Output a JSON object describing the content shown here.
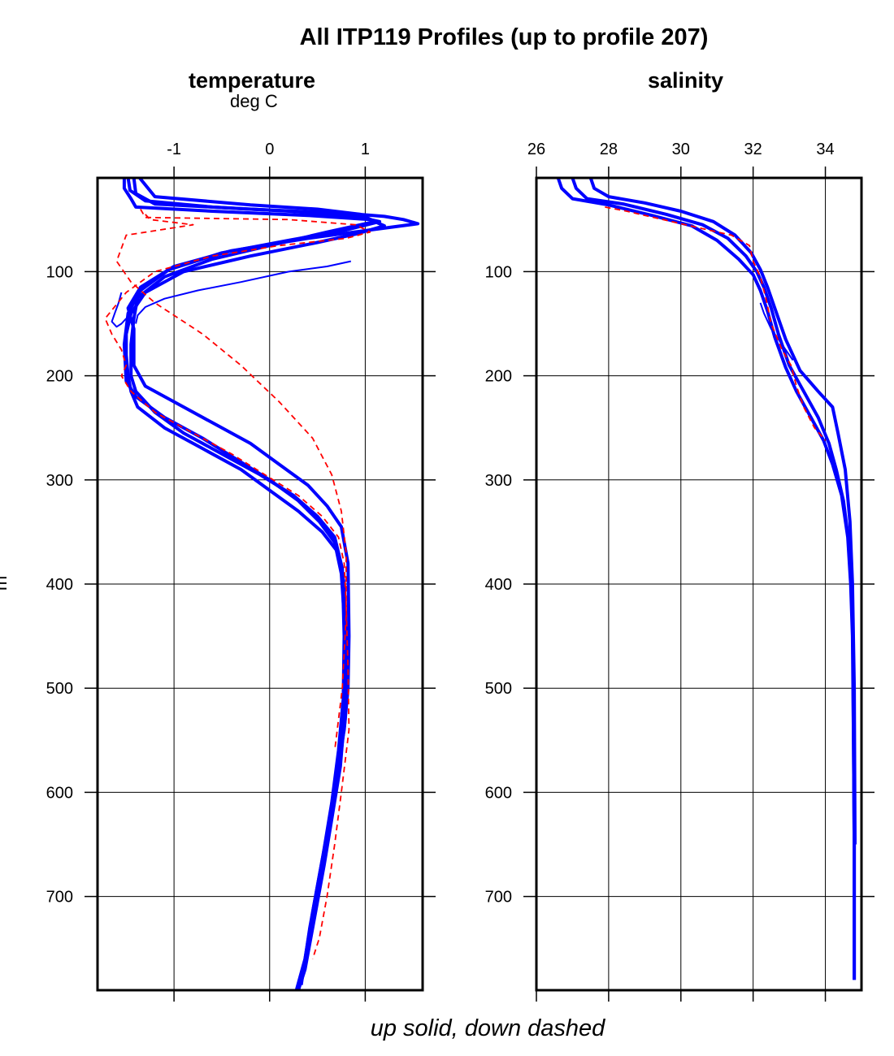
{
  "title": "All ITP119 Profiles (up to profile 207)",
  "footer": "up solid, down dashed",
  "ylabel": "m",
  "colors": {
    "up": "#0000ff",
    "down": "#ff0000",
    "grid": "#000000"
  },
  "chart_data": [
    {
      "type": "line",
      "title": "temperature",
      "unit": "deg C",
      "xlim": [
        -1.8,
        1.6
      ],
      "ylim": [
        790,
        10
      ],
      "y_inverted": true,
      "xticks": [
        -1,
        0,
        1
      ],
      "xtick_labels": [
        "-1",
        "0",
        "1"
      ],
      "yticks": [
        100,
        200,
        300,
        400,
        500,
        600,
        700
      ],
      "ytick_labels": [
        "100",
        "200",
        "300",
        "400",
        "500",
        "600",
        "700"
      ],
      "grid": true,
      "series": [
        {
          "style": "up_solid",
          "x": [
            -1.52,
            -1.52,
            -1.45,
            -1.4,
            -0.6,
            0.4,
            1.05,
            1.2,
            0.9,
            0.5,
            -0.2,
            -0.9,
            -1.3,
            -1.45,
            -1.5,
            -1.5,
            -1.48,
            -1.45,
            -1.38,
            -1.1,
            -0.7,
            -0.3,
            0.0,
            0.3,
            0.55,
            0.72,
            0.78,
            0.8,
            0.8,
            0.79,
            0.75,
            0.68,
            0.6,
            0.5,
            0.4,
            0.3
          ],
          "y": [
            10,
            20,
            30,
            38,
            42,
            46,
            50,
            56,
            64,
            72,
            85,
            100,
            120,
            140,
            160,
            180,
            200,
            215,
            230,
            250,
            270,
            290,
            310,
            330,
            350,
            370,
            400,
            450,
            500,
            530,
            560,
            600,
            650,
            700,
            750,
            790
          ]
        },
        {
          "style": "up_solid",
          "x": [
            -1.42,
            -1.4,
            -1.2,
            -0.2,
            0.8,
            1.2,
            1.4,
            1.55,
            1.05,
            0.4,
            -0.4,
            -1.0,
            -1.35,
            -1.48,
            -1.42,
            -1.42,
            -1.3,
            -1.0,
            -0.6,
            -0.2,
            0.1,
            0.4,
            0.6,
            0.75,
            0.82,
            0.83,
            0.82,
            0.78,
            0.7,
            0.62,
            0.52,
            0.42,
            0.33
          ],
          "y": [
            10,
            25,
            35,
            40,
            44,
            47,
            50,
            54,
            60,
            68,
            80,
            95,
            115,
            135,
            155,
            190,
            210,
            225,
            245,
            265,
            285,
            305,
            325,
            345,
            380,
            450,
            500,
            540,
            580,
            630,
            680,
            730,
            785
          ]
        },
        {
          "style": "up_solid",
          "x": [
            0.85,
            0.6,
            0.2,
            -0.3,
            -0.75,
            -1.1,
            -1.3,
            -1.38,
            -1.4
          ],
          "y": [
            90,
            95,
            100,
            110,
            118,
            126,
            134,
            142,
            150
          ]
        },
        {
          "style": "up_solid",
          "x": [
            -1.55,
            -1.58,
            -1.62,
            -1.65,
            -1.6,
            -1.55,
            -1.5
          ],
          "y": [
            120,
            130,
            140,
            148,
            153,
            150,
            145
          ]
        },
        {
          "style": "up_solid",
          "x": [
            -1.36,
            -1.2,
            -0.2,
            0.5,
            0.95,
            1.1,
            0.6,
            0.0,
            -0.6,
            -1.1,
            -1.38,
            -1.42,
            -1.45,
            -1.45,
            -1.4,
            -1.2,
            -0.9,
            -0.5,
            -0.1,
            0.25,
            0.5,
            0.68,
            0.76,
            0.78,
            0.77,
            0.72,
            0.65,
            0.56,
            0.46,
            0.37,
            0.28
          ],
          "y": [
            10,
            28,
            36,
            40,
            45,
            52,
            62,
            75,
            88,
            105,
            125,
            145,
            170,
            200,
            215,
            235,
            255,
            275,
            295,
            315,
            335,
            355,
            385,
            450,
            510,
            560,
            610,
            660,
            710,
            760,
            790
          ]
        },
        {
          "style": "up_solid",
          "x": [
            -1.48,
            -1.46,
            -1.3,
            -0.6,
            0.2,
            0.85,
            1.15,
            0.8,
            0.2,
            -0.5,
            -1.05,
            -1.35,
            -1.48,
            -1.52,
            -1.5,
            -1.4,
            -1.1,
            -0.7,
            -0.35,
            0.0,
            0.3,
            0.52,
            0.68,
            0.75,
            0.78,
            0.8,
            0.78,
            0.74,
            0.66,
            0.57,
            0.47,
            0.37,
            0.3
          ],
          "y": [
            10,
            22,
            32,
            38,
            42,
            46,
            52,
            60,
            70,
            82,
            98,
            118,
            140,
            170,
            205,
            220,
            240,
            260,
            280,
            300,
            320,
            340,
            360,
            390,
            430,
            480,
            530,
            575,
            620,
            670,
            720,
            770,
            790
          ]
        },
        {
          "style": "down_dashed",
          "x": [
            -1.35,
            -1.3,
            0.2,
            0.9,
            1.05,
            0.8,
            0.1,
            -0.6,
            -1.2,
            -1.5,
            -1.72,
            -1.65,
            -1.55,
            -1.5,
            -1.55,
            -1.45,
            -1.2,
            -0.8,
            -0.4,
            -0.05,
            0.3,
            0.55,
            0.72,
            0.78,
            0.8,
            0.82,
            0.83,
            0.75,
            0.68,
            0.6,
            0.52,
            0.45
          ],
          "y": [
            40,
            48,
            50,
            55,
            62,
            68,
            75,
            85,
            100,
            120,
            145,
            160,
            175,
            190,
            200,
            215,
            235,
            255,
            275,
            295,
            315,
            335,
            355,
            380,
            420,
            480,
            540,
            600,
            650,
            700,
            740,
            760
          ]
        },
        {
          "style": "down_dashed",
          "x": [
            -1.3,
            -1.25,
            -0.8,
            -1.5,
            -1.6,
            -1.45,
            -1.2,
            -0.7,
            -0.3,
            0.1,
            0.45,
            0.65,
            0.75,
            0.8,
            0.8,
            0.76,
            0.68
          ],
          "y": [
            45,
            50,
            55,
            65,
            90,
            110,
            130,
            160,
            190,
            225,
            260,
            295,
            330,
            370,
            430,
            500,
            560
          ]
        }
      ]
    },
    {
      "type": "line",
      "title": "salinity",
      "unit": "",
      "xlim": [
        26,
        35
      ],
      "ylim": [
        790,
        10
      ],
      "y_inverted": true,
      "xticks": [
        26,
        28,
        30,
        32,
        34
      ],
      "xtick_labels": [
        "26",
        "28",
        "30",
        "32",
        "34"
      ],
      "yticks": [
        100,
        200,
        300,
        400,
        500,
        600,
        700
      ],
      "ytick_labels": [
        "100",
        "200",
        "300",
        "400",
        "500",
        "600",
        "700"
      ],
      "grid": true,
      "series": [
        {
          "style": "up_solid",
          "x": [
            27.0,
            27.1,
            27.4,
            28.4,
            29.6,
            30.6,
            31.3,
            31.8,
            32.1,
            32.3,
            32.5,
            32.7,
            33.0,
            33.4,
            33.8,
            34.1,
            34.3,
            34.5,
            34.65,
            34.72,
            34.76,
            34.78,
            34.8,
            34.8
          ],
          "y": [
            10,
            20,
            30,
            35,
            45,
            55,
            68,
            85,
            100,
            115,
            135,
            160,
            190,
            215,
            240,
            265,
            290,
            320,
            360,
            400,
            450,
            550,
            650,
            780
          ]
        },
        {
          "style": "up_solid",
          "x": [
            26.6,
            26.7,
            27.0,
            28.0,
            29.2,
            30.3,
            31.0,
            31.6,
            32.0,
            32.2,
            32.4,
            32.6,
            32.9,
            33.2,
            33.6,
            33.95,
            34.2,
            34.45,
            34.62,
            34.7,
            34.75,
            34.78,
            34.8,
            34.8
          ],
          "y": [
            10,
            20,
            30,
            36,
            46,
            56,
            70,
            88,
            103,
            118,
            138,
            163,
            192,
            215,
            240,
            262,
            285,
            315,
            355,
            400,
            450,
            550,
            650,
            780
          ]
        },
        {
          "style": "up_solid",
          "x": [
            27.5,
            27.6,
            28.0,
            29.0,
            30.0,
            30.9,
            31.5,
            31.95,
            32.2,
            32.4,
            32.6,
            32.9,
            33.3,
            33.8,
            34.2,
            34.35,
            34.55,
            34.68,
            34.75,
            34.8,
            34.82
          ],
          "y": [
            10,
            20,
            28,
            34,
            42,
            52,
            65,
            82,
            98,
            115,
            135,
            165,
            195,
            215,
            230,
            255,
            290,
            340,
            400,
            500,
            650
          ]
        },
        {
          "style": "up_solid",
          "x": [
            32.2,
            32.3,
            32.5,
            32.8,
            33.1
          ],
          "y": [
            130,
            140,
            155,
            170,
            185
          ]
        },
        {
          "style": "down_dashed",
          "x": [
            27.9,
            28.5,
            29.5,
            30.5,
            31.4,
            31.9,
            32.0,
            32.2,
            32.35,
            32.5,
            32.8,
            33.05,
            33.2,
            33.4,
            33.7,
            34.0
          ],
          "y": [
            38,
            42,
            50,
            58,
            65,
            75,
            90,
            105,
            125,
            150,
            175,
            190,
            210,
            230,
            250,
            262
          ]
        }
      ]
    }
  ]
}
